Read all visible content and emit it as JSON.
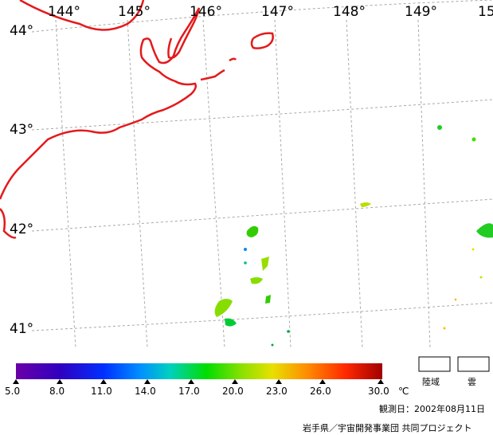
{
  "map": {
    "longitude_labels": [
      "144°",
      "145°",
      "146°",
      "147°",
      "148°",
      "149°",
      "15"
    ],
    "latitude_labels": [
      "44°",
      "43°",
      "42°",
      "41°"
    ],
    "coastline_color": "#e31a1c",
    "grid_color": "#aaaaaa"
  },
  "colorbar": {
    "ticks": [
      "5.0",
      "8.0",
      "11.0",
      "14.0",
      "17.0",
      "20.0",
      "23.0",
      "26.0",
      "30.0"
    ],
    "unit": "℃",
    "colors": [
      "#7000a0",
      "#2000c0",
      "#0040ff",
      "#00a0ff",
      "#00d0b0",
      "#00e000",
      "#a0e000",
      "#e0e000",
      "#ff9000",
      "#ff3000",
      "#b00000"
    ]
  },
  "legend": {
    "land_label": "陸域",
    "cloud_label": "雲"
  },
  "footer": {
    "observation_date": "観測日：2002年08月11日",
    "credit": "岩手県／宇宙開発事業団 共同プロジェクト"
  }
}
